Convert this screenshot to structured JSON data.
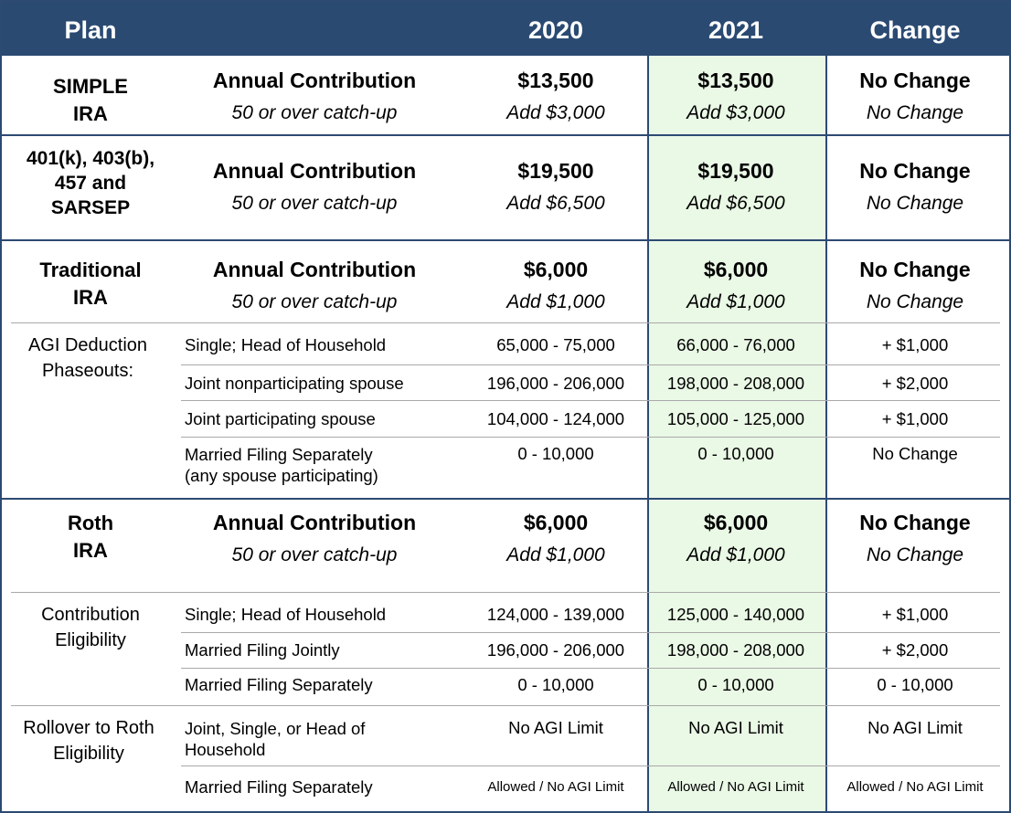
{
  "header": {
    "plan": "Plan",
    "y2020": "2020",
    "y2021": "2021",
    "change": "Change"
  },
  "simple": {
    "plan_line1": "SIMPLE",
    "plan_line2": "IRA",
    "annual_label": "Annual Contribution",
    "catchup_label": "50 or over catch-up",
    "v2020": "$13,500",
    "v2020_catchup": "Add $3,000",
    "v2021": "$13,500",
    "v2021_catchup": "Add $3,000",
    "change": "No Change",
    "change_catchup": "No Change"
  },
  "k401": {
    "plan_line1": "401(k), 403(b),",
    "plan_line2": "457 and",
    "plan_line3": "SARSEP",
    "annual_label": "Annual Contribution",
    "catchup_label": "50 or over catch-up",
    "v2020": "$19,500",
    "v2020_catchup": "Add $6,500",
    "v2021": "$19,500",
    "v2021_catchup": "Add $6,500",
    "change": "No Change",
    "change_catchup": "No Change"
  },
  "trad": {
    "plan_line1": "Traditional",
    "plan_line2": "IRA",
    "annual_label": "Annual Contribution",
    "catchup_label": "50 or over catch-up",
    "v2020": "$6,000",
    "v2020_catchup": "Add $1,000",
    "v2021": "$6,000",
    "v2021_catchup": "Add $1,000",
    "change": "No Change",
    "change_catchup": "No Change",
    "sub_line1": "AGI Deduction",
    "sub_line2": "Phaseouts:",
    "rows": [
      {
        "label": "Single; Head of Household",
        "v2020": "65,000 - 75,000",
        "v2021": "66,000 - 76,000",
        "change": "+ $1,000"
      },
      {
        "label": "Joint nonparticipating spouse",
        "v2020": "196,000 - 206,000",
        "v2021": "198,000 - 208,000",
        "change": "+ $2,000"
      },
      {
        "label": "Joint participating spouse",
        "v2020": "104,000 - 124,000",
        "v2021": "105,000 - 125,000",
        "change": "+ $1,000"
      },
      {
        "label": "Married Filing Separately",
        "label2": "(any spouse participating)",
        "v2020": "0 - 10,000",
        "v2021": "0 - 10,000",
        "change": "No Change"
      }
    ]
  },
  "roth": {
    "plan_line1": "Roth",
    "plan_line2": "IRA",
    "annual_label": "Annual Contribution",
    "catchup_label": "50 or over catch-up",
    "v2020": "$6,000",
    "v2020_catchup": "Add $1,000",
    "v2021": "$6,000",
    "v2021_catchup": "Add $1,000",
    "change": "No Change",
    "change_catchup": "No Change",
    "elig_line1": "Contribution",
    "elig_line2": "Eligibility",
    "elig_rows": [
      {
        "label": "Single; Head of Household",
        "v2020": "124,000 - 139,000",
        "v2021": "125,000 - 140,000",
        "change": "+ $1,000"
      },
      {
        "label": "Married Filing Jointly",
        "v2020": "196,000 - 206,000",
        "v2021": "198,000 - 208,000",
        "change": "+ $2,000"
      },
      {
        "label": "Married Filing Separately",
        "v2020": "0 - 10,000",
        "v2021": "0 - 10,000",
        "change": "0 - 10,000"
      }
    ],
    "roll_line1": "Rollover to Roth",
    "roll_line2": "Eligibility",
    "roll_rows": [
      {
        "label": "Joint, Single, or Head of",
        "label2": "Household",
        "v2020": "No AGI Limit",
        "v2021": "No AGI Limit",
        "change": "No AGI Limit"
      },
      {
        "label": "Married Filing Separately",
        "v2020": "Allowed / No AGI Limit",
        "v2021": "Allowed / No AGI Limit",
        "change": "Allowed / No AGI Limit"
      }
    ]
  }
}
